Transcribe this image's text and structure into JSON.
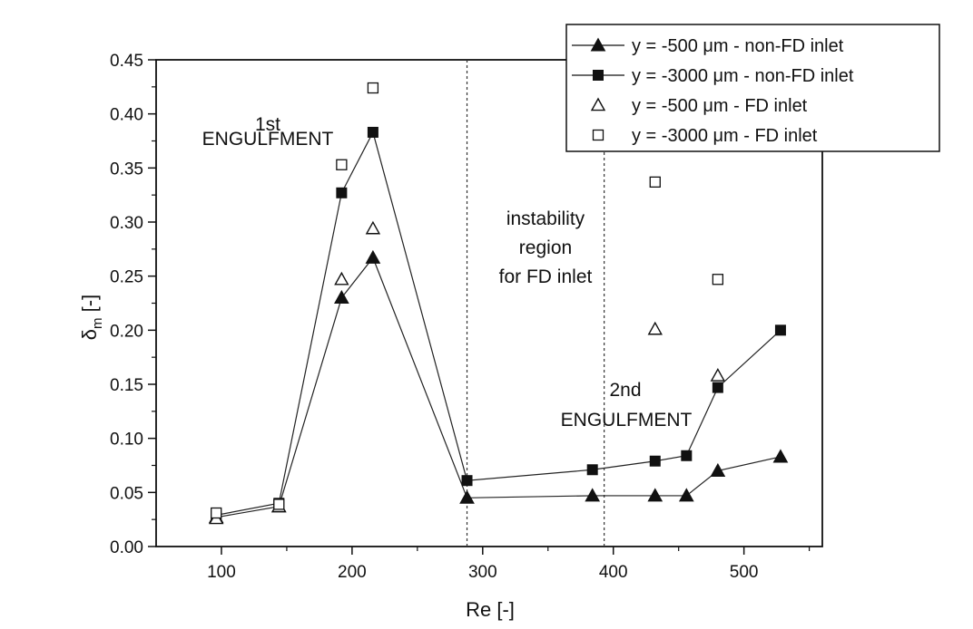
{
  "chart_data": {
    "type": "scatter",
    "xlabel": "Re [-]",
    "ylabel_main": "δ",
    "ylabel_sub": "m",
    "ylabel_unit": " [-]",
    "xlim": [
      50,
      560
    ],
    "ylim": [
      0,
      0.45
    ],
    "xticks": [
      100,
      200,
      300,
      400,
      500
    ],
    "xtick_labels": [
      "100",
      "200",
      "300",
      "400",
      "500"
    ],
    "yticks": [
      0,
      0.05,
      0.1,
      0.15,
      0.2,
      0.25,
      0.3,
      0.35,
      0.4,
      0.45
    ],
    "ytick_labels": [
      "0.00",
      "0.05",
      "0.10",
      "0.15",
      "0.20",
      "0.25",
      "0.30",
      "0.35",
      "0.40",
      "0.45"
    ],
    "grid": false,
    "legend_position": "top-right",
    "vlines": [
      288,
      393
    ],
    "series": [
      {
        "name": "y = -500 μm - non-FD inlet",
        "marker": "triangle-filled",
        "connected": true,
        "x": [
          96,
          144,
          192,
          216,
          288,
          384,
          432,
          456,
          480,
          528
        ],
        "y": [
          0.027,
          0.037,
          0.23,
          0.267,
          0.045,
          0.047,
          0.047,
          0.047,
          0.07,
          0.083
        ]
      },
      {
        "name": "y = -3000 μm - non-FD inlet",
        "marker": "square-filled",
        "connected": true,
        "x": [
          96,
          144,
          192,
          216,
          288,
          384,
          432,
          456,
          480,
          528
        ],
        "y": [
          0.029,
          0.04,
          0.327,
          0.383,
          0.061,
          0.071,
          0.079,
          0.084,
          0.147,
          0.2
        ]
      },
      {
        "name": "y = -500 μm - FD inlet",
        "marker": "triangle-open",
        "connected": false,
        "x": [
          96,
          144,
          192,
          216,
          432,
          480
        ],
        "y": [
          0.026,
          0.037,
          0.247,
          0.294,
          0.201,
          0.158
        ]
      },
      {
        "name": "y = -3000 μm - FD inlet",
        "marker": "square-open",
        "connected": false,
        "x": [
          96,
          144,
          192,
          216,
          432,
          480
        ],
        "y": [
          0.031,
          0.039,
          0.353,
          0.424,
          0.337,
          0.247
        ]
      }
    ],
    "annotations": {
      "first_1": "1st",
      "first_2": "ENGULFMENT",
      "instab_1": "instability",
      "instab_2": "region",
      "instab_3": "for FD inlet",
      "second_1": "2nd",
      "second_2": "ENGULFMENT"
    }
  }
}
